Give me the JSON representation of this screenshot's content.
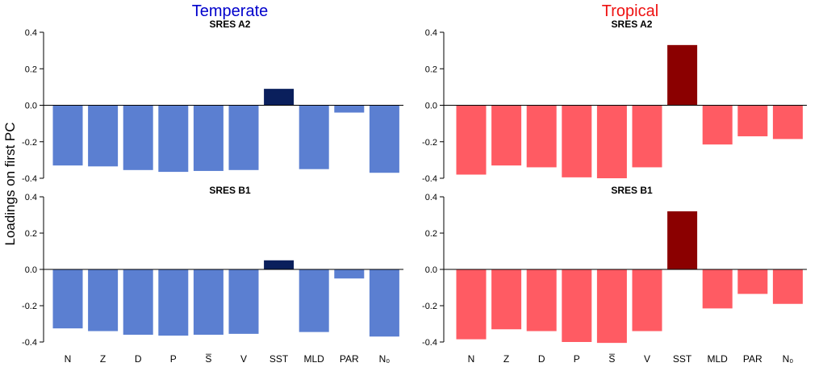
{
  "ylabel": "Loadings on first PC",
  "columns": [
    {
      "title": "Temperate",
      "color": "#0000CC"
    },
    {
      "title": "Tropical",
      "color": "#EE1111"
    }
  ],
  "chart_data": [
    {
      "type": "bar",
      "region": "Temperate",
      "title": "SRES A2",
      "categories": [
        "N",
        "Z",
        "D",
        "P",
        "S",
        "V",
        "SST",
        "MLD",
        "PAR",
        "N0"
      ],
      "category_labels": [
        "N",
        "Z",
        "D",
        "P",
        "S̅",
        "V",
        "SST",
        "MLD",
        "PAR",
        "N₀"
      ],
      "values": [
        -0.33,
        -0.335,
        -0.355,
        -0.365,
        -0.36,
        -0.355,
        0.09,
        -0.35,
        -0.04,
        -0.37
      ],
      "bar_color": "#5B7FD1",
      "highlight_color": "#0A1F5C",
      "highlight_category": "SST",
      "ylim": [
        -0.4,
        0.4
      ],
      "yticks": [
        "-0.4",
        "-0.2",
        "0.0",
        "0.2",
        "0.4"
      ]
    },
    {
      "type": "bar",
      "region": "Tropical",
      "title": "SRES A2",
      "categories": [
        "N",
        "Z",
        "D",
        "P",
        "S",
        "V",
        "SST",
        "MLD",
        "PAR",
        "N0"
      ],
      "category_labels": [
        "N",
        "Z",
        "D",
        "P",
        "S̅",
        "V",
        "SST",
        "MLD",
        "PAR",
        "N₀"
      ],
      "values": [
        -0.38,
        -0.33,
        -0.34,
        -0.395,
        -0.4,
        -0.34,
        0.33,
        -0.215,
        -0.17,
        -0.185
      ],
      "bar_color": "#FF5B63",
      "highlight_color": "#8B0000",
      "highlight_category": "SST",
      "ylim": [
        -0.4,
        0.4
      ],
      "yticks": [
        "-0.4",
        "-0.2",
        "0.0",
        "0.2",
        "0.4"
      ]
    },
    {
      "type": "bar",
      "region": "Temperate",
      "title": "SRES B1",
      "categories": [
        "N",
        "Z",
        "D",
        "P",
        "S",
        "V",
        "SST",
        "MLD",
        "PAR",
        "N0"
      ],
      "category_labels": [
        "N",
        "Z",
        "D",
        "P",
        "S̅",
        "V",
        "SST",
        "MLD",
        "PAR",
        "N₀"
      ],
      "values": [
        -0.325,
        -0.34,
        -0.36,
        -0.365,
        -0.36,
        -0.355,
        0.05,
        -0.345,
        -0.05,
        -0.37
      ],
      "bar_color": "#5B7FD1",
      "highlight_color": "#0A1F5C",
      "highlight_category": "SST",
      "ylim": [
        -0.4,
        0.4
      ],
      "yticks": [
        "-0.4",
        "-0.2",
        "0.0",
        "0.2",
        "0.4"
      ]
    },
    {
      "type": "bar",
      "region": "Tropical",
      "title": "SRES B1",
      "categories": [
        "N",
        "Z",
        "D",
        "P",
        "S",
        "V",
        "SST",
        "MLD",
        "PAR",
        "N0"
      ],
      "category_labels": [
        "N",
        "Z",
        "D",
        "P",
        "S̅",
        "V",
        "SST",
        "MLD",
        "PAR",
        "N₀"
      ],
      "values": [
        -0.385,
        -0.33,
        -0.34,
        -0.4,
        -0.405,
        -0.34,
        0.32,
        -0.215,
        -0.135,
        -0.19
      ],
      "bar_color": "#FF5B63",
      "highlight_color": "#8B0000",
      "highlight_category": "SST",
      "ylim": [
        -0.4,
        0.4
      ],
      "yticks": [
        "-0.4",
        "-0.2",
        "0.0",
        "0.2",
        "0.4"
      ]
    }
  ]
}
